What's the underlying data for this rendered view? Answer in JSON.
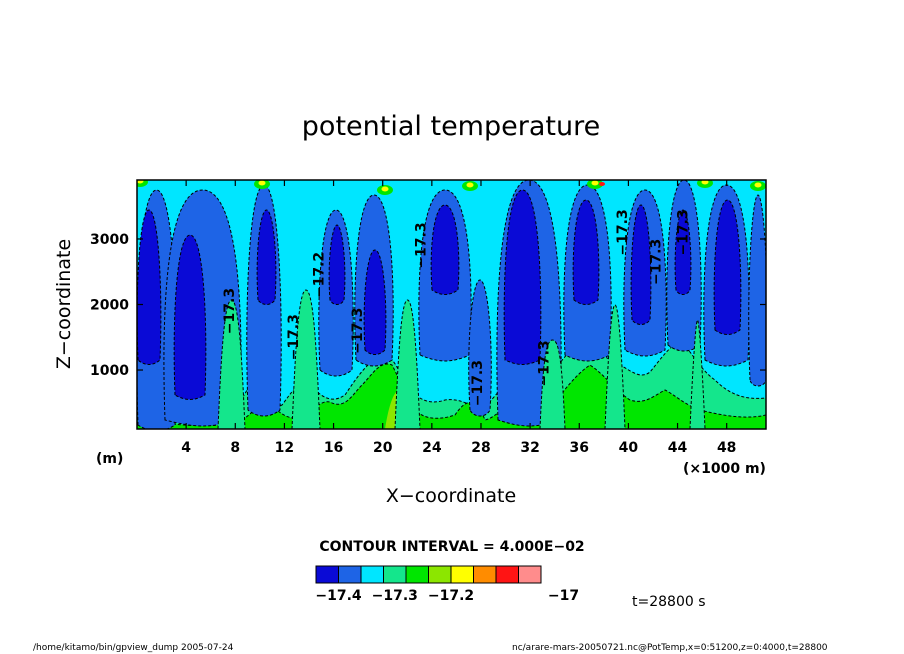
{
  "chart_data": {
    "type": "heatmap",
    "title": "potential temperature",
    "xlabel": "X−coordinate",
    "ylabel": "Z−coordinate",
    "x_unit": "(×1000 m)",
    "y_unit": "(m)",
    "xlim": [
      0,
      51.2
    ],
    "ylim": [
      100,
      3900
    ],
    "x_ticks": [
      4,
      8,
      12,
      16,
      20,
      24,
      28,
      32,
      36,
      40,
      44,
      48
    ],
    "x_tick_labels": [
      "4",
      "8",
      "12",
      "16",
      "20",
      "24",
      "28",
      "32",
      "36",
      "40",
      "44",
      "48"
    ],
    "y_ticks": [
      1000,
      2000,
      3000
    ],
    "y_tick_labels": [
      "1000",
      "2000",
      "3000"
    ],
    "contour_interval_text": "CONTOUR INTERVAL = 4.000E−02",
    "colorbar": {
      "levels": [
        -17.44,
        -17.4,
        -17.36,
        -17.32,
        -17.28,
        -17.24,
        -17.2,
        -17.16,
        -17.12,
        -17.08,
        -17.04,
        -17.0,
        -16.96
      ],
      "colors": [
        "#0a0ad6",
        "#1e64e6",
        "#00e6ff",
        "#14e68c",
        "#00e600",
        "#8ce600",
        "#ffff00",
        "#ff8c00",
        "#ff1414",
        "#ff8c8c"
      ],
      "tick_values": [
        -17.4,
        -17.3,
        -17.2,
        -17.0
      ],
      "tick_labels": [
        "−17.4",
        "−17.3",
        "−17.2",
        "−17"
      ]
    },
    "contour_labels": [
      {
        "x": 7.9,
        "y": 1900,
        "text": "−17.3"
      },
      {
        "x": 13.1,
        "y": 1500,
        "text": "−17.3"
      },
      {
        "x": 15.2,
        "y": 2450,
        "text": "−17.2"
      },
      {
        "x": 18.3,
        "y": 1600,
        "text": "−17.3"
      },
      {
        "x": 23.5,
        "y": 2900,
        "text": "−17.3"
      },
      {
        "x": 28.1,
        "y": 800,
        "text": "−17.3"
      },
      {
        "x": 33.5,
        "y": 1100,
        "text": "−17.3"
      },
      {
        "x": 39.9,
        "y": 3100,
        "text": "−17.3"
      },
      {
        "x": 42.6,
        "y": 2650,
        "text": "−17.3"
      },
      {
        "x": 44.8,
        "y": 3100,
        "text": "−17.3"
      }
    ],
    "field_description": "vertically elongated alternating cool and warm columns of potential temperature, values between about -17.44 and -16.96"
  },
  "time_label": "t=28800 s",
  "footer": {
    "left": "/home/kitamo/bin/gpview_dump   2005-07-24",
    "right": "nc/arare-mars-20050721.nc@PotTemp,x=0:51200,z=0:4000,t=28800"
  }
}
